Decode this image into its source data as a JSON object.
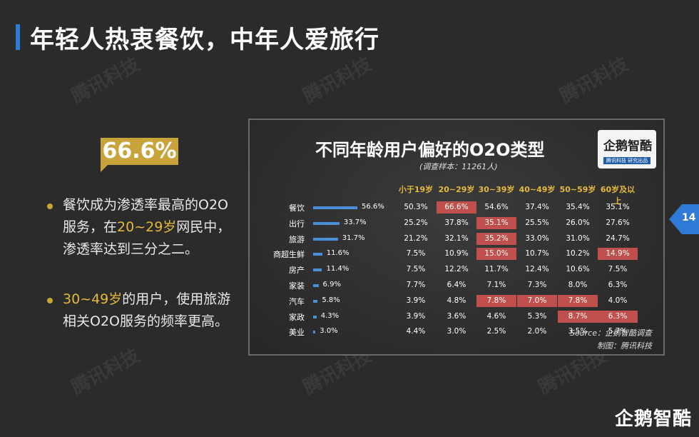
{
  "page": {
    "title": "年轻人热衷餐饮，中年人爱旅行",
    "watermark": "腾讯科技",
    "page_number": "14",
    "brand": "企鹅智酷"
  },
  "left": {
    "badge": "66.6%",
    "bullet1": {
      "pre": "餐饮成为渗透率最高的O2O服务，在",
      "hl": "20~29岁",
      "post": "网民中，渗透率达到三分之二。"
    },
    "bullet2": {
      "hl": "30~49岁",
      "post": "的用户，使用旅游相关O2O服务的频率更高。"
    }
  },
  "panel": {
    "title": "不同年龄用户偏好的O2O类型",
    "subtitle": "(调查样本：11261人)",
    "logo": "企鹅智酷",
    "logo_strip": "腾讯科技  研究出品",
    "source": "Source：企鹅智酷调查",
    "credit": "制图：腾讯科技"
  },
  "colors": {
    "accent_blue": "#2e7ad6",
    "gold": "#c9a43a",
    "highlight_red": "#c0504d",
    "bar_blue": "#4a90d9"
  },
  "chart_data": {
    "type": "table",
    "columns": [
      "小于19岁",
      "20~29岁",
      "30~39岁",
      "40~49岁",
      "50~59岁",
      "60岁及以上"
    ],
    "rows": [
      {
        "label": "餐饮",
        "overall": 56.6,
        "overall_text": "56.6%",
        "values": [
          "50.3%",
          "66.6%",
          "54.6%",
          "37.4%",
          "35.4%",
          "35.1%"
        ],
        "highlight": [
          1
        ]
      },
      {
        "label": "出行",
        "overall": 33.7,
        "overall_text": "33.7%",
        "values": [
          "25.2%",
          "37.8%",
          "35.1%",
          "25.5%",
          "26.0%",
          "27.6%"
        ],
        "highlight": [
          2
        ]
      },
      {
        "label": "旅游",
        "overall": 31.7,
        "overall_text": "31.7%",
        "values": [
          "21.2%",
          "32.1%",
          "35.2%",
          "33.0%",
          "31.0%",
          "24.7%"
        ],
        "highlight": [
          2
        ]
      },
      {
        "label": "商超生鲜",
        "overall": 11.6,
        "overall_text": "11.6%",
        "values": [
          "7.5%",
          "10.9%",
          "15.0%",
          "10.7%",
          "10.2%",
          "14.9%"
        ],
        "highlight": [
          2,
          5
        ]
      },
      {
        "label": "房产",
        "overall": 11.4,
        "overall_text": "11.4%",
        "values": [
          "7.5%",
          "12.2%",
          "11.7%",
          "12.4%",
          "10.6%",
          "7.5%"
        ],
        "highlight": []
      },
      {
        "label": "家装",
        "overall": 6.9,
        "overall_text": "6.9%",
        "values": [
          "7.7%",
          "6.4%",
          "7.1%",
          "7.3%",
          "8.0%",
          "6.3%"
        ],
        "highlight": []
      },
      {
        "label": "汽车",
        "overall": 5.8,
        "overall_text": "5.8%",
        "values": [
          "3.9%",
          "4.8%",
          "7.8%",
          "7.0%",
          "7.8%",
          "4.0%"
        ],
        "highlight": [
          2,
          3,
          4
        ]
      },
      {
        "label": "家政",
        "overall": 4.3,
        "overall_text": "4.3%",
        "values": [
          "3.9%",
          "3.6%",
          "4.6%",
          "5.3%",
          "8.7%",
          "6.3%"
        ],
        "highlight": [
          4,
          5
        ]
      },
      {
        "label": "美业",
        "overall": 3.0,
        "overall_text": "3.0%",
        "values": [
          "4.4%",
          "3.0%",
          "2.5%",
          "2.0%",
          "3.5%",
          "5.7%"
        ],
        "highlight": []
      }
    ]
  }
}
